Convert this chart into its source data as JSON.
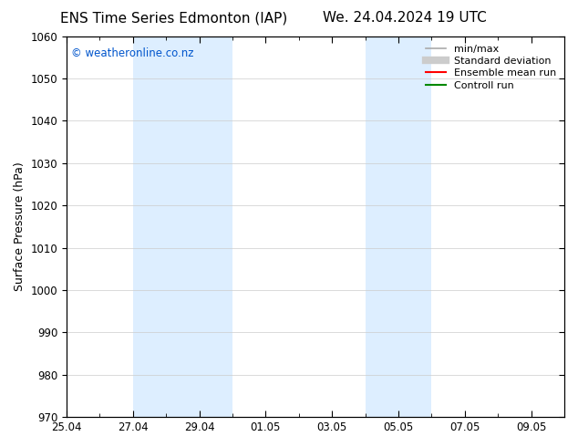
{
  "title_left": "ENS Time Series Edmonton (IAP)",
  "title_right": "We. 24.04.2024 19 UTC",
  "ylabel": "Surface Pressure (hPa)",
  "ylim": [
    970,
    1060
  ],
  "yticks": [
    970,
    980,
    990,
    1000,
    1010,
    1020,
    1030,
    1040,
    1050,
    1060
  ],
  "xlim_start": "2024-04-25",
  "xlim_end": "2024-05-10",
  "xtick_labels": [
    "25.04",
    "27.04",
    "29.04",
    "01.05",
    "03.05",
    "05.05",
    "07.05",
    "09.05"
  ],
  "xtick_dates": [
    "2024-04-25",
    "2024-04-27",
    "2024-04-29",
    "2024-05-01",
    "2024-05-03",
    "2024-05-05",
    "2024-05-07",
    "2024-05-09"
  ],
  "shaded_regions": [
    {
      "start": "2024-04-27",
      "end": "2024-04-29",
      "color": "#ddeeff"
    },
    {
      "start": "2024-04-29",
      "end": "2024-04-30",
      "color": "#ddeeff"
    },
    {
      "start": "2024-05-04",
      "end": "2024-05-05",
      "color": "#ddeeff"
    },
    {
      "start": "2024-05-05",
      "end": "2024-05-06",
      "color": "#ddeeff"
    }
  ],
  "watermark_text": "© weatheronline.co.nz",
  "watermark_color": "#0055cc",
  "background_color": "#ffffff",
  "legend_items": [
    {
      "label": "min/max",
      "color": "#aaaaaa",
      "lw": 1.2
    },
    {
      "label": "Standard deviation",
      "color": "#cccccc",
      "lw": 6
    },
    {
      "label": "Ensemble mean run",
      "color": "#ff0000",
      "lw": 1.5
    },
    {
      "label": "Controll run",
      "color": "#008800",
      "lw": 1.5
    }
  ],
  "title_fontsize": 11,
  "tick_fontsize": 8.5,
  "label_fontsize": 9,
  "legend_fontsize": 8,
  "watermark_fontsize": 8.5
}
